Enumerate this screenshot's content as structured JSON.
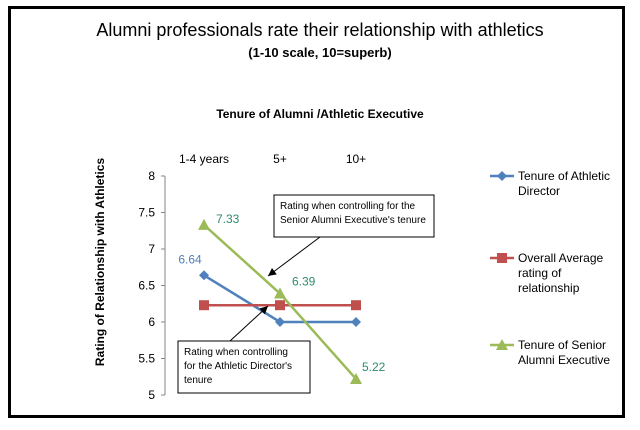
{
  "chart_data": {
    "type": "line",
    "title": "Alumni professionals rate their relationship with athletics",
    "subtitle": "(1-10 scale, 10=superb)",
    "xlabel": "Tenure of Alumni /Athletic Executive",
    "ylabel": "Rating of Relationship with Athletics",
    "categories": [
      "1-4 years",
      "5+",
      "10+"
    ],
    "ylim": [
      5,
      8
    ],
    "yticks": [
      "5",
      "5.5",
      "6",
      "6.5",
      "7",
      "7.5",
      "8"
    ],
    "grid": false,
    "legend_position": "right",
    "series": [
      {
        "name": "Tenure of Athletic Director",
        "legend_lines": [
          "Tenure of Athletic",
          "Director"
        ],
        "values": [
          6.64,
          6.0,
          6.0
        ],
        "labels": [
          "6.64",
          "",
          ""
        ],
        "color": "#4f81bd",
        "marker": "diamond"
      },
      {
        "name": "Overall Average rating of relationship",
        "legend_lines": [
          "Overall Average",
          "rating of",
          "relationship"
        ],
        "values": [
          6.23,
          6.23,
          6.23
        ],
        "labels": [
          "",
          "",
          ""
        ],
        "color": "#c0504d",
        "marker": "square"
      },
      {
        "name": "Tenure of Senior Alumni Executive",
        "legend_lines": [
          "Tenure of Senior",
          "Alumni Executive"
        ],
        "values": [
          7.33,
          6.39,
          5.22
        ],
        "labels": [
          "7.33",
          "6.39",
          "5.22"
        ],
        "color": "#9bbb59",
        "label_color": "#2e8b6e",
        "marker": "triangle"
      }
    ],
    "annotations": [
      {
        "lines": [
          "Rating when controlling for the",
          "Senior Alumni Executive's tenure"
        ],
        "points_to_series": 2,
        "points_to_index": 1
      },
      {
        "lines": [
          "Rating when controlling",
          "for the Athletic Director's",
          "tenure"
        ],
        "points_to_series": 0,
        "points_to_index": 1
      }
    ]
  }
}
